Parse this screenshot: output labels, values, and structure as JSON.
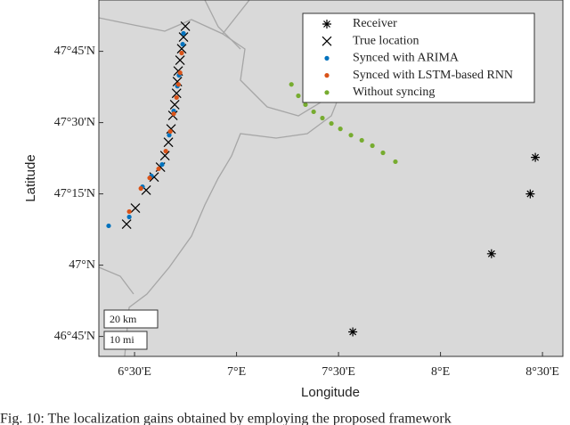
{
  "chart_data": {
    "type": "scatter",
    "x_label": "Longitude",
    "y_label": "Latitude",
    "xlim": [
      6.325,
      8.6
    ],
    "ylim": [
      46.68,
      47.93
    ],
    "xticks": [
      {
        "value": 6.5,
        "label": "6°30'E"
      },
      {
        "value": 7,
        "label": "7°E"
      },
      {
        "value": 7.5,
        "label": "7°30'E"
      },
      {
        "value": 8,
        "label": "8°E"
      },
      {
        "value": 8.5,
        "label": "8°30'E"
      }
    ],
    "yticks": [
      {
        "value": 46.75,
        "label": "46°45'N"
      },
      {
        "value": 47,
        "label": "47°N"
      },
      {
        "value": 47.25,
        "label": "47°15'N"
      },
      {
        "value": 47.5,
        "label": "47°30'N"
      },
      {
        "value": 47.75,
        "label": "47°45'N"
      }
    ],
    "legend": "upper right",
    "series": [
      {
        "name": "Receiver",
        "color": "#000000",
        "marker": "asterisk",
        "x": [
          7.57,
          8.25,
          8.44,
          8.465
        ],
        "y": [
          46.766,
          47.04,
          47.25,
          47.378
        ]
      },
      {
        "name": "True location",
        "color": "#000000",
        "marker": "cross",
        "x": [
          6.461,
          6.504,
          6.557,
          6.596,
          6.627,
          6.649,
          6.666,
          6.679,
          6.688,
          6.697,
          6.706,
          6.71,
          6.714,
          6.723,
          6.731,
          6.74,
          6.749
        ],
        "y": [
          47.144,
          47.2,
          47.263,
          47.309,
          47.344,
          47.384,
          47.431,
          47.478,
          47.525,
          47.563,
          47.603,
          47.644,
          47.681,
          47.719,
          47.759,
          47.8,
          47.838
        ]
      },
      {
        "name": "Synced with ARIMA",
        "color": "#0072bd",
        "marker": "dot",
        "x": [
          6.373,
          6.474,
          6.539,
          6.583,
          6.635,
          6.67,
          6.692,
          6.71,
          6.718,
          6.736,
          6.74
        ],
        "y": [
          47.138,
          47.169,
          47.275,
          47.313,
          47.353,
          47.456,
          47.541,
          47.628,
          47.666,
          47.775,
          47.813
        ]
      },
      {
        "name": "Synced with LSTM-based RNN",
        "color": "#d95319",
        "marker": "dot",
        "x": [
          6.474,
          6.531,
          6.574,
          6.618,
          6.653,
          6.675,
          6.692,
          6.706,
          6.715,
          6.723,
          6.731
        ],
        "y": [
          47.188,
          47.269,
          47.306,
          47.338,
          47.4,
          47.469,
          47.531,
          47.588,
          47.634,
          47.675,
          47.744
        ]
      },
      {
        "name": "Without syncing",
        "color": "#77ac30",
        "marker": "dot",
        "x": [
          7.269,
          7.303,
          7.338,
          7.378,
          7.421,
          7.465,
          7.509,
          7.561,
          7.614,
          7.666,
          7.718,
          7.779
        ],
        "y": [
          47.634,
          47.594,
          47.563,
          47.538,
          47.516,
          47.497,
          47.478,
          47.456,
          47.438,
          47.419,
          47.394,
          47.363
        ]
      }
    ]
  },
  "scale_bar": [
    "20 km",
    "10 mi"
  ],
  "caption": "Fig. 10: The localization gains obtained by employing the proposed framework"
}
